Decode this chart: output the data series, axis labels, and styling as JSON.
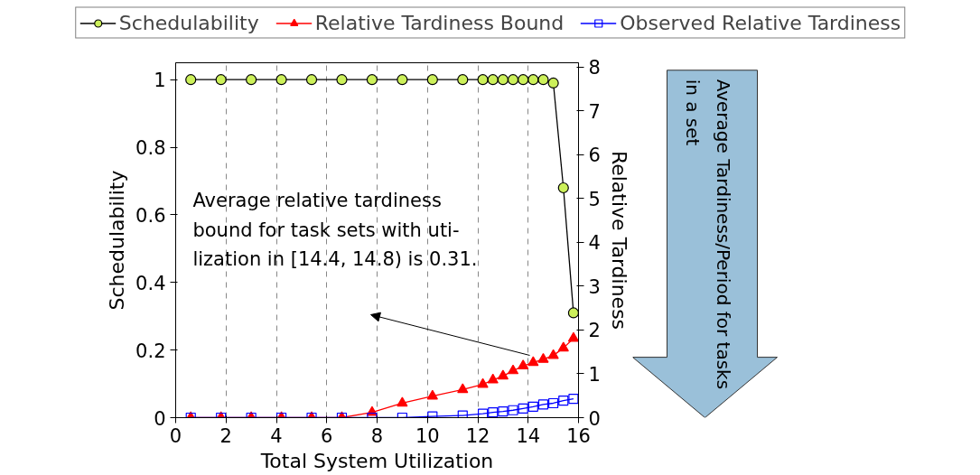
{
  "chart_data": {
    "type": "line",
    "x": [
      0.6,
      1.8,
      3.0,
      4.2,
      5.4,
      6.6,
      7.8,
      9.0,
      10.2,
      11.4,
      12.2,
      12.6,
      13.0,
      13.4,
      13.8,
      14.2,
      14.6,
      15.0,
      15.4,
      15.8
    ],
    "xlabel": "Total System Utilization",
    "ylabel": "Schedulability",
    "y2label": "Relative Tardiness",
    "xlim": [
      0,
      16
    ],
    "xticks": [
      0,
      2,
      4,
      6,
      8,
      10,
      12,
      14,
      16
    ],
    "ylim": [
      0,
      1.05
    ],
    "yticks": [
      0,
      0.2,
      0.4,
      0.6,
      0.8,
      1
    ],
    "y2lim": [
      0,
      8.1
    ],
    "y2ticks": [
      0,
      1,
      2,
      3,
      4,
      5,
      6,
      7,
      8
    ],
    "grid": "x",
    "legend": "top",
    "series": [
      {
        "name": "Schedulability",
        "color": "#ccf05a",
        "marker": "circle",
        "values": [
          1,
          1,
          1,
          1,
          1,
          1,
          1,
          1,
          1,
          1,
          1,
          1,
          1,
          1,
          1,
          1,
          1,
          0.99,
          0.68,
          0.31
        ]
      },
      {
        "name": "Relative Tardiness Bound",
        "color": "#ff0000",
        "marker": "triangle",
        "axis": "y2",
        "values": [
          0,
          0,
          0,
          0,
          0,
          0,
          0.12,
          0.33,
          0.49,
          0.64,
          0.76,
          0.86,
          0.95,
          1.07,
          1.18,
          1.26,
          1.33,
          1.42,
          1.59,
          1.81
        ]
      },
      {
        "name": "Observed Relative Tardiness",
        "color": "#0000ff",
        "marker": "square",
        "axis": "y2",
        "values": [
          0,
          0,
          0,
          0,
          0,
          0,
          0,
          0,
          0.03,
          0.05,
          0.09,
          0.12,
          0.14,
          0.17,
          0.21,
          0.25,
          0.3,
          0.33,
          0.39,
          0.43
        ]
      }
    ],
    "annotations": [
      "Average relative tardiness\nbound for task sets with uti-\nlization in [14.4, 14.8) is 0.31.",
      "Average Tardiness/Period for tasks\nin a set"
    ]
  }
}
